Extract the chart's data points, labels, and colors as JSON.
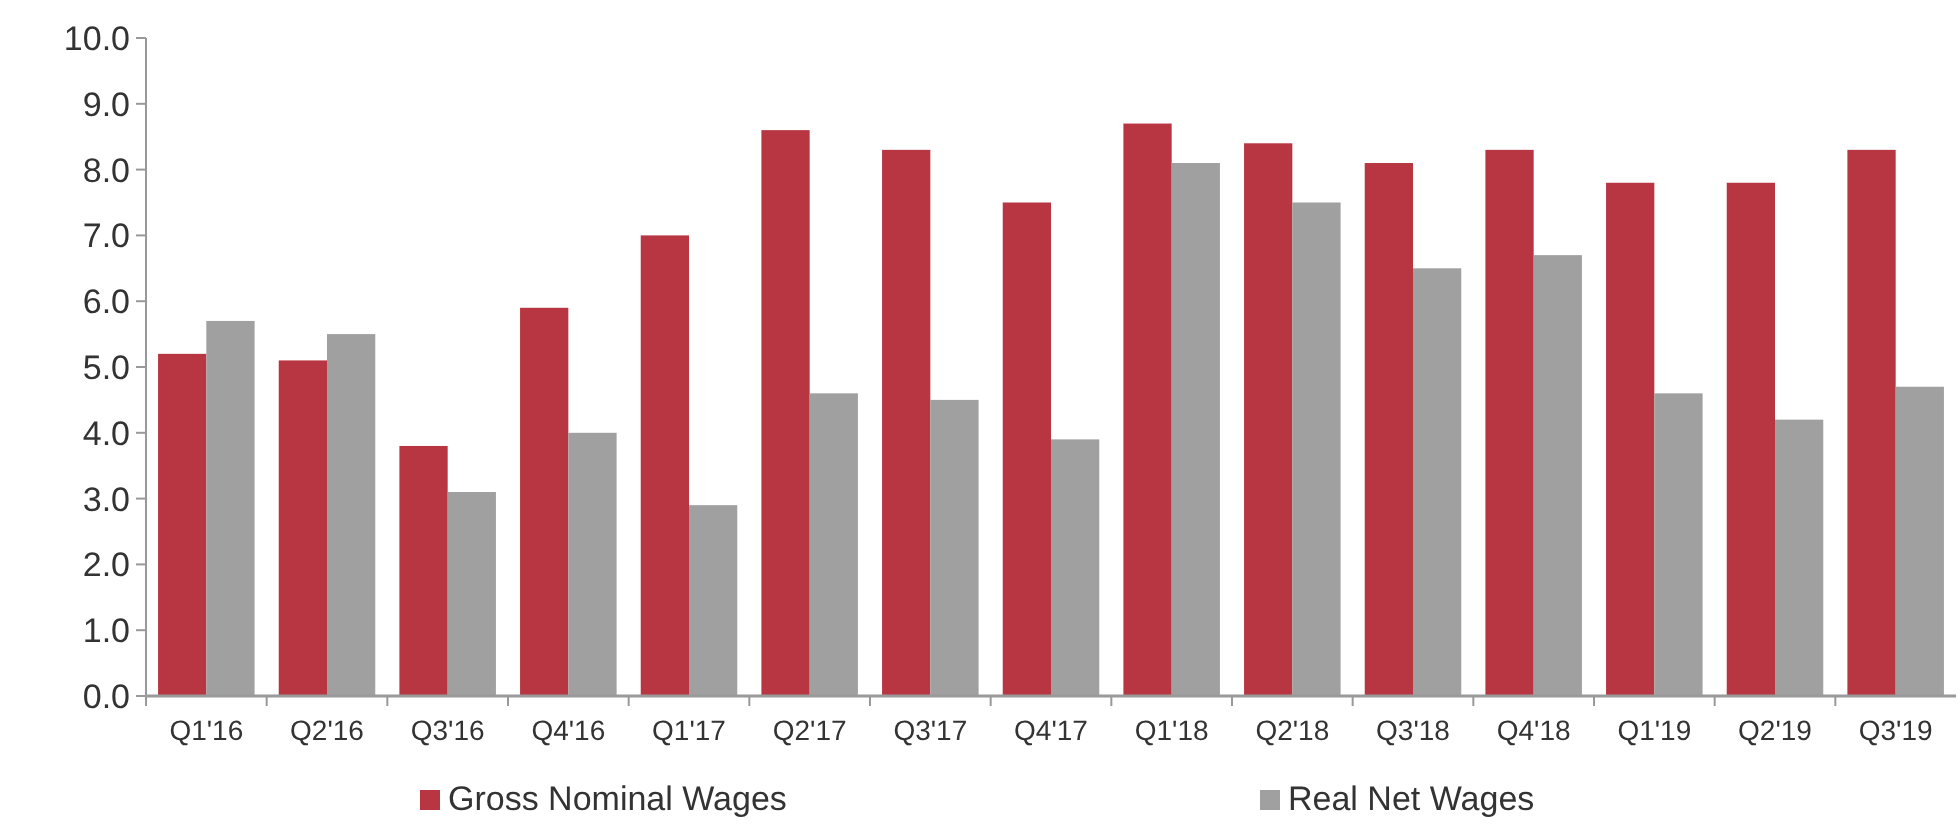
{
  "chart_data": {
    "type": "bar",
    "categories": [
      "Q1'16",
      "Q2'16",
      "Q3'16",
      "Q4'16",
      "Q1'17",
      "Q2'17",
      "Q3'17",
      "Q4'17",
      "Q1'18",
      "Q2'18",
      "Q3'18",
      "Q4'18",
      "Q1'19",
      "Q2'19",
      "Q3'19"
    ],
    "series": [
      {
        "name": "Gross Nominal Wages",
        "color": "#b73641",
        "values": [
          5.2,
          5.1,
          3.8,
          5.9,
          7.0,
          8.6,
          8.3,
          7.5,
          8.7,
          8.4,
          8.1,
          8.3,
          7.8,
          7.8,
          8.3
        ]
      },
      {
        "name": "Real Net Wages",
        "color": "#a0a0a0",
        "values": [
          5.7,
          5.5,
          3.1,
          4.0,
          2.9,
          4.6,
          4.5,
          3.9,
          8.1,
          7.5,
          6.5,
          6.7,
          4.6,
          4.2,
          4.7
        ]
      }
    ],
    "ylim": [
      0,
      10
    ],
    "yticks": [
      {
        "value": 0,
        "label": "0.0"
      },
      {
        "value": 1,
        "label": "1.0"
      },
      {
        "value": 2,
        "label": "2.0"
      },
      {
        "value": 3,
        "label": "3.0"
      },
      {
        "value": 4,
        "label": "4.0"
      },
      {
        "value": 5,
        "label": "5.0"
      },
      {
        "value": 6,
        "label": "6.0"
      },
      {
        "value": 7,
        "label": "7.0"
      },
      {
        "value": 8,
        "label": "8.0"
      },
      {
        "value": 9,
        "label": "9.0"
      },
      {
        "value": 10,
        "label": "10.0"
      }
    ],
    "grid": false,
    "legend": "bottom"
  }
}
